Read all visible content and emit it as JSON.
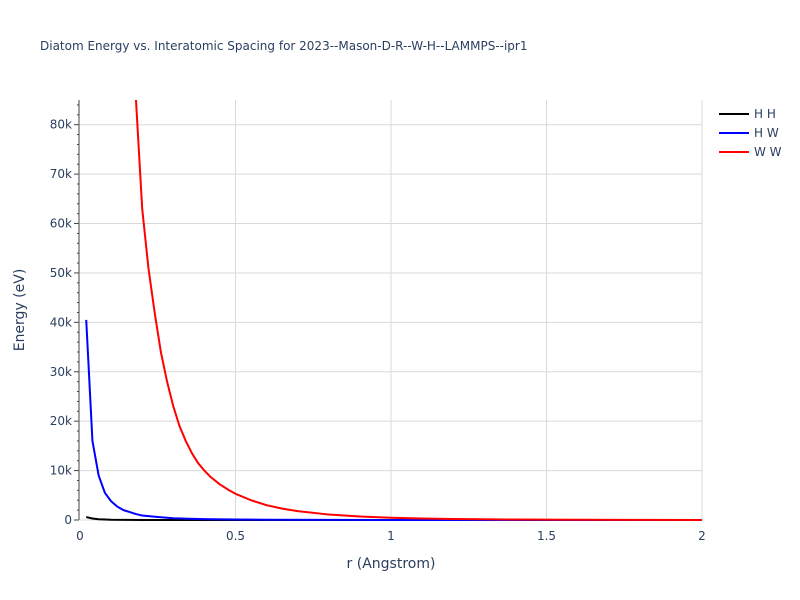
{
  "chart_data": {
    "type": "line",
    "title": "Diatom Energy vs. Interatomic Spacing for 2023--Mason-D-R--W-H--LAMMPS--ipr1",
    "xlabel": "r (Angstrom)",
    "ylabel": "Energy (eV)",
    "xlim": [
      0,
      2
    ],
    "ylim": [
      0,
      85000
    ],
    "grid": true,
    "legend_position": "top-right",
    "x_ticks": [
      {
        "value": 0,
        "label": "0"
      },
      {
        "value": 0.5,
        "label": "0.5"
      },
      {
        "value": 1,
        "label": "1"
      },
      {
        "value": 1.5,
        "label": "1.5"
      },
      {
        "value": 2,
        "label": "2"
      }
    ],
    "y_ticks": [
      {
        "value": 0,
        "label": "0"
      },
      {
        "value": 10000,
        "label": "10k"
      },
      {
        "value": 20000,
        "label": "20k"
      },
      {
        "value": 30000,
        "label": "30k"
      },
      {
        "value": 40000,
        "label": "40k"
      },
      {
        "value": 50000,
        "label": "50k"
      },
      {
        "value": 60000,
        "label": "60k"
      },
      {
        "value": 70000,
        "label": "70k"
      },
      {
        "value": 80000,
        "label": "80k"
      }
    ],
    "series": [
      {
        "name": "H H",
        "color": "#000000",
        "points": [
          [
            0.02,
            600
          ],
          [
            0.04,
            300
          ],
          [
            0.06,
            150
          ],
          [
            0.1,
            60
          ],
          [
            0.15,
            20
          ],
          [
            0.2,
            5
          ],
          [
            0.3,
            0
          ],
          [
            2.0,
            0
          ]
        ]
      },
      {
        "name": "H W",
        "color": "#0000ff",
        "points": [
          [
            0.02,
            40500
          ],
          [
            0.04,
            16000
          ],
          [
            0.06,
            9000
          ],
          [
            0.08,
            5500
          ],
          [
            0.1,
            3800
          ],
          [
            0.12,
            2700
          ],
          [
            0.14,
            2000
          ],
          [
            0.16,
            1600
          ],
          [
            0.18,
            1200
          ],
          [
            0.2,
            900
          ],
          [
            0.25,
            600
          ],
          [
            0.3,
            350
          ],
          [
            0.35,
            250
          ],
          [
            0.4,
            180
          ],
          [
            0.5,
            100
          ],
          [
            0.6,
            60
          ],
          [
            0.8,
            20
          ],
          [
            1.0,
            5
          ],
          [
            2.0,
            0
          ]
        ]
      },
      {
        "name": "W W",
        "color": "#ff0000",
        "points": [
          [
            0.18,
            85000
          ],
          [
            0.2,
            63000
          ],
          [
            0.22,
            51000
          ],
          [
            0.24,
            42000
          ],
          [
            0.26,
            34000
          ],
          [
            0.28,
            28000
          ],
          [
            0.3,
            23000
          ],
          [
            0.32,
            19000
          ],
          [
            0.34,
            16000
          ],
          [
            0.36,
            13500
          ],
          [
            0.38,
            11500
          ],
          [
            0.4,
            10000
          ],
          [
            0.42,
            8700
          ],
          [
            0.45,
            7200
          ],
          [
            0.48,
            6000
          ],
          [
            0.5,
            5300
          ],
          [
            0.55,
            4000
          ],
          [
            0.6,
            3000
          ],
          [
            0.65,
            2300
          ],
          [
            0.7,
            1800
          ],
          [
            0.8,
            1100
          ],
          [
            0.9,
            700
          ],
          [
            1.0,
            450
          ],
          [
            1.1,
            300
          ],
          [
            1.2,
            200
          ],
          [
            1.4,
            100
          ],
          [
            1.6,
            50
          ],
          [
            1.8,
            25
          ],
          [
            2.0,
            10
          ]
        ]
      }
    ]
  }
}
